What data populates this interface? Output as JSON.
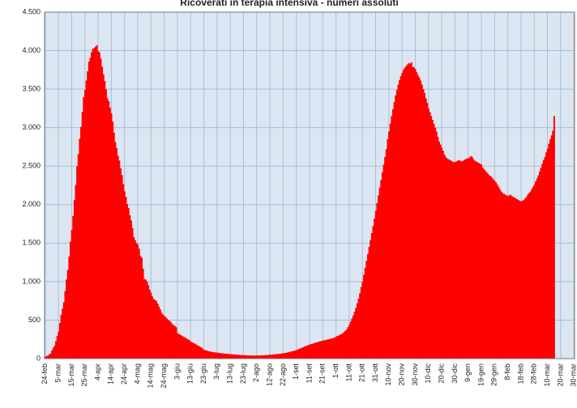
{
  "chart_data": {
    "type": "bar",
    "title": "Ricoverati in terapia intensiva - numeri assoluti",
    "color": "#ff0000",
    "grid": true,
    "ylim": [
      0,
      4500
    ],
    "yticks": [
      0,
      500,
      {
        "value": 1000,
        "label": "1.000"
      },
      {
        "value": 1500,
        "label": "1.500"
      },
      {
        "value": 2000,
        "label": "2.000"
      },
      {
        "value": 2500,
        "label": "2.500"
      },
      {
        "value": 3000,
        "label": "3.000"
      },
      {
        "value": 3500,
        "label": "3.500"
      },
      {
        "value": 4000,
        "label": "4.000"
      },
      {
        "value": 4500,
        "label": "4.500"
      }
    ],
    "categories": [
      "24-feb",
      null,
      null,
      null,
      null,
      null,
      null,
      null,
      null,
      null,
      "5-mar",
      null,
      null,
      null,
      null,
      null,
      null,
      null,
      null,
      null,
      "15-mar",
      null,
      null,
      null,
      null,
      null,
      null,
      null,
      null,
      null,
      "25-mar",
      null,
      null,
      null,
      null,
      null,
      null,
      null,
      null,
      null,
      "4-apr",
      null,
      null,
      null,
      null,
      null,
      null,
      null,
      null,
      null,
      "14-apr",
      null,
      null,
      null,
      null,
      null,
      null,
      null,
      null,
      null,
      "24-apr",
      null,
      null,
      null,
      null,
      null,
      null,
      null,
      null,
      null,
      "4-mag",
      null,
      null,
      null,
      null,
      null,
      null,
      null,
      null,
      null,
      "14-mag",
      null,
      null,
      null,
      null,
      null,
      null,
      null,
      null,
      null,
      "24-mag",
      null,
      null,
      null,
      null,
      null,
      null,
      null,
      null,
      null,
      "3-giu",
      null,
      null,
      null,
      null,
      null,
      null,
      null,
      null,
      null,
      "13-giu",
      null,
      null,
      null,
      null,
      null,
      null,
      null,
      null,
      null,
      "23-giu",
      null,
      null,
      null,
      null,
      null,
      null,
      null,
      null,
      null,
      "3-lug",
      null,
      null,
      null,
      null,
      null,
      null,
      null,
      null,
      null,
      "13-lug",
      null,
      null,
      null,
      null,
      null,
      null,
      null,
      null,
      null,
      "23-lug",
      null,
      null,
      null,
      null,
      null,
      null,
      null,
      null,
      null,
      "2-ago",
      null,
      null,
      null,
      null,
      null,
      null,
      null,
      null,
      null,
      "12-ago",
      null,
      null,
      null,
      null,
      null,
      null,
      null,
      null,
      null,
      "22-ago",
      null,
      null,
      null,
      null,
      null,
      null,
      null,
      null,
      null,
      "1-set",
      null,
      null,
      null,
      null,
      null,
      null,
      null,
      null,
      null,
      "11-set",
      null,
      null,
      null,
      null,
      null,
      null,
      null,
      null,
      null,
      "21-set",
      null,
      null,
      null,
      null,
      null,
      null,
      null,
      null,
      null,
      "1-ott",
      null,
      null,
      null,
      null,
      null,
      null,
      null,
      null,
      null,
      "11-ott",
      null,
      null,
      null,
      null,
      null,
      null,
      null,
      null,
      null,
      "21-ott",
      null,
      null,
      null,
      null,
      null,
      null,
      null,
      null,
      null,
      "31-ott",
      null,
      null,
      null,
      null,
      null,
      null,
      null,
      null,
      null,
      "10-nov",
      null,
      null,
      null,
      null,
      null,
      null,
      null,
      null,
      null,
      "20-nov",
      null,
      null,
      null,
      null,
      null,
      null,
      null,
      null,
      null,
      "30-nov",
      null,
      null,
      null,
      null,
      null,
      null,
      null,
      null,
      null,
      "10-dic",
      null,
      null,
      null,
      null,
      null,
      null,
      null,
      null,
      null,
      "20-dic",
      null,
      null,
      null,
      null,
      null,
      null,
      null,
      null,
      null,
      "30-dic",
      null,
      null,
      null,
      null,
      null,
      null,
      null,
      null,
      null,
      "9-gen",
      null,
      null,
      null,
      null,
      null,
      null,
      null,
      null,
      null,
      "19-gen",
      null,
      null,
      null,
      null,
      null,
      null,
      null,
      null,
      null,
      "29-gen",
      null,
      null,
      null,
      null,
      null,
      null,
      null,
      null,
      null,
      "8-feb",
      null,
      null,
      null,
      null,
      null,
      null,
      null,
      null,
      null,
      "18-feb",
      null,
      null,
      null,
      null,
      null,
      null,
      null,
      null,
      null,
      "28-feb",
      null,
      null,
      null,
      null,
      null,
      null,
      null,
      null,
      null,
      "10-mar",
      null,
      null,
      null,
      null,
      null,
      null,
      null,
      null,
      null,
      "20-mar",
      null,
      null,
      null,
      null,
      null,
      null,
      null,
      null,
      null,
      "30-mar"
    ],
    "values": [
      27,
      35,
      36,
      56,
      64,
      105,
      140,
      166,
      229,
      295,
      351,
      462,
      567,
      650,
      733,
      877,
      1028,
      1153,
      1328,
      1518,
      1672,
      1851,
      2060,
      2257,
      2498,
      2655,
      2857,
      3009,
      3204,
      3396,
      3489,
      3612,
      3732,
      3856,
      3906,
      3981,
      4023,
      4035,
      4053,
      4068,
      3994,
      3977,
      3898,
      3792,
      3693,
      3605,
      3497,
      3381,
      3343,
      3260,
      3186,
      3079,
      2936,
      2812,
      2733,
      2635,
      2573,
      2471,
      2384,
      2267,
      2173,
      2102,
      2009,
      1956,
      1863,
      1795,
      1694,
      1578,
      1539,
      1501,
      1479,
      1427,
      1333,
      1311,
      1168,
      1034,
      1027,
      999,
      952,
      893,
      855,
      808,
      775,
      762,
      749,
      716,
      676,
      640,
      595,
      572,
      553,
      541,
      521,
      505,
      489,
      475,
      450,
      435,
      424,
      408,
      330,
      320,
      310,
      300,
      290,
      280,
      270,
      260,
      250,
      240,
      220,
      212,
      205,
      195,
      185,
      175,
      165,
      155,
      145,
      130,
      115,
      110,
      105,
      100,
      95,
      90,
      87,
      85,
      82,
      80,
      78,
      75,
      72,
      70,
      68,
      66,
      65,
      64,
      62,
      60,
      58,
      56,
      55,
      53,
      52,
      50,
      49,
      48,
      47,
      46,
      45,
      44,
      43,
      42,
      42,
      41,
      41,
      40,
      40,
      40,
      40,
      41,
      41,
      42,
      43,
      44,
      45,
      46,
      47,
      49,
      50,
      52,
      53,
      55,
      56,
      58,
      60,
      62,
      64,
      66,
      69,
      72,
      75,
      79,
      83,
      87,
      92,
      96,
      100,
      105,
      110,
      118,
      126,
      133,
      140,
      148,
      155,
      162,
      170,
      176,
      182,
      188,
      193,
      198,
      204,
      210,
      215,
      220,
      225,
      230,
      234,
      238,
      242,
      246,
      250,
      254,
      258,
      262,
      268,
      275,
      285,
      295,
      300,
      310,
      320,
      330,
      345,
      360,
      380,
      410,
      440,
      480,
      520,
      560,
      610,
      660,
      720,
      780,
      850,
      930,
      1000,
      1090,
      1180,
      1270,
      1360,
      1450,
      1540,
      1630,
      1720,
      1820,
      1920,
      2020,
      2120,
      2220,
      2320,
      2420,
      2520,
      2620,
      2720,
      2850,
      2950,
      3050,
      3150,
      3240,
      3330,
      3420,
      3490,
      3560,
      3620,
      3670,
      3710,
      3750,
      3780,
      3800,
      3820,
      3840,
      3830,
      3850,
      3790,
      3780,
      3760,
      3720,
      3680,
      3650,
      3610,
      3560,
      3500,
      3450,
      3380,
      3320,
      3250,
      3200,
      3150,
      3100,
      3050,
      3000,
      2950,
      2880,
      2820,
      2780,
      2740,
      2700,
      2650,
      2620,
      2600,
      2590,
      2580,
      2570,
      2560,
      2550,
      2555,
      2560,
      2570,
      2580,
      2570,
      2560,
      2570,
      2580,
      2590,
      2600,
      2600,
      2610,
      2630,
      2620,
      2590,
      2570,
      2560,
      2550,
      2540,
      2530,
      2520,
      2480,
      2460,
      2440,
      2420,
      2400,
      2380,
      2370,
      2350,
      2330,
      2310,
      2290,
      2260,
      2230,
      2200,
      2170,
      2150,
      2140,
      2130,
      2120,
      2110,
      2120,
      2130,
      2110,
      2100,
      2090,
      2080,
      2070,
      2060,
      2050,
      2040,
      2050,
      2060,
      2080,
      2100,
      2130,
      2150,
      2170,
      2200,
      2230,
      2260,
      2300,
      2340,
      2380,
      2430,
      2480,
      2530,
      2580,
      2620,
      2680,
      2730,
      2790,
      2850,
      2900,
      2960,
      3150,
      null,
      null,
      null,
      null,
      null,
      null,
      null,
      null,
      null,
      null,
      null,
      null,
      null,
      null,
      null
    ]
  }
}
